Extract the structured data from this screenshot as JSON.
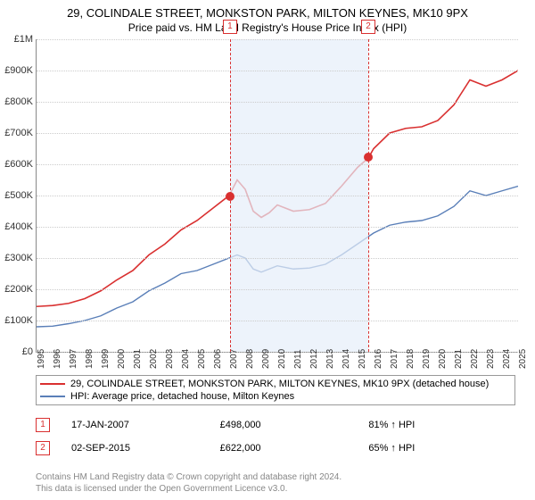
{
  "title": "29, COLINDALE STREET, MONKSTON PARK, MILTON KEYNES, MK10 9PX",
  "subtitle": "Price paid vs. HM Land Registry's House Price Index (HPI)",
  "chart": {
    "xlim": [
      1995,
      2025
    ],
    "ylim": [
      0,
      1000
    ],
    "ytick_step": 100,
    "ylabels": [
      "£0",
      "£100K",
      "£200K",
      "£300K",
      "£400K",
      "£500K",
      "£600K",
      "£700K",
      "£800K",
      "£900K",
      "£1M"
    ],
    "xticks": [
      1995,
      1996,
      1997,
      1998,
      1999,
      2000,
      2001,
      2002,
      2003,
      2004,
      2005,
      2006,
      2007,
      2008,
      2009,
      2010,
      2011,
      2012,
      2013,
      2014,
      2015,
      2016,
      2017,
      2018,
      2019,
      2020,
      2021,
      2022,
      2023,
      2024,
      2025
    ],
    "shade": {
      "from": 2007.05,
      "to": 2015.67,
      "color": "#e6eef9"
    },
    "markers": [
      {
        "n": "1",
        "x": 2007.05,
        "y": 498,
        "color": "#d93030"
      },
      {
        "n": "2",
        "x": 2015.67,
        "y": 622,
        "color": "#d93030"
      }
    ],
    "red_line": {
      "color": "#d93030",
      "width": 1.6,
      "points": [
        [
          1995,
          145
        ],
        [
          1996,
          148
        ],
        [
          1997,
          155
        ],
        [
          1998,
          170
        ],
        [
          1999,
          195
        ],
        [
          2000,
          230
        ],
        [
          2001,
          260
        ],
        [
          2002,
          310
        ],
        [
          2003,
          345
        ],
        [
          2004,
          390
        ],
        [
          2005,
          420
        ],
        [
          2006,
          460
        ],
        [
          2007,
          500
        ],
        [
          2007.5,
          550
        ],
        [
          2008,
          520
        ],
        [
          2008.5,
          450
        ],
        [
          2009,
          430
        ],
        [
          2009.5,
          445
        ],
        [
          2010,
          470
        ],
        [
          2011,
          450
        ],
        [
          2012,
          455
        ],
        [
          2013,
          475
        ],
        [
          2014,
          530
        ],
        [
          2015,
          590
        ],
        [
          2015.67,
          620
        ],
        [
          2016,
          650
        ],
        [
          2017,
          700
        ],
        [
          2018,
          715
        ],
        [
          2019,
          720
        ],
        [
          2020,
          740
        ],
        [
          2021,
          790
        ],
        [
          2022,
          870
        ],
        [
          2023,
          850
        ],
        [
          2024,
          870
        ],
        [
          2025,
          900
        ]
      ]
    },
    "blue_line": {
      "color": "#5a7fb8",
      "width": 1.4,
      "points": [
        [
          1995,
          80
        ],
        [
          1996,
          82
        ],
        [
          1997,
          90
        ],
        [
          1998,
          100
        ],
        [
          1999,
          115
        ],
        [
          2000,
          140
        ],
        [
          2001,
          160
        ],
        [
          2002,
          195
        ],
        [
          2003,
          220
        ],
        [
          2004,
          250
        ],
        [
          2005,
          260
        ],
        [
          2006,
          280
        ],
        [
          2007,
          300
        ],
        [
          2007.5,
          310
        ],
        [
          2008,
          300
        ],
        [
          2008.5,
          265
        ],
        [
          2009,
          255
        ],
        [
          2010,
          275
        ],
        [
          2011,
          265
        ],
        [
          2012,
          268
        ],
        [
          2013,
          280
        ],
        [
          2014,
          310
        ],
        [
          2015,
          345
        ],
        [
          2016,
          380
        ],
        [
          2017,
          405
        ],
        [
          2018,
          415
        ],
        [
          2019,
          420
        ],
        [
          2020,
          435
        ],
        [
          2021,
          465
        ],
        [
          2022,
          515
        ],
        [
          2023,
          500
        ],
        [
          2024,
          515
        ],
        [
          2025,
          530
        ]
      ]
    }
  },
  "legend": [
    {
      "color": "#d93030",
      "label": "29, COLINDALE STREET, MONKSTON PARK, MILTON KEYNES, MK10 9PX (detached house)"
    },
    {
      "color": "#5a7fb8",
      "label": "HPI: Average price, detached house, Milton Keynes"
    }
  ],
  "annotations": [
    {
      "n": "1",
      "date": "17-JAN-2007",
      "price": "£498,000",
      "delta": "81% ↑ HPI"
    },
    {
      "n": "2",
      "date": "02-SEP-2015",
      "price": "£622,000",
      "delta": "65% ↑ HPI"
    }
  ],
  "footer1": "Contains HM Land Registry data © Crown copyright and database right 2024.",
  "footer2": "This data is licensed under the Open Government Licence v3.0."
}
